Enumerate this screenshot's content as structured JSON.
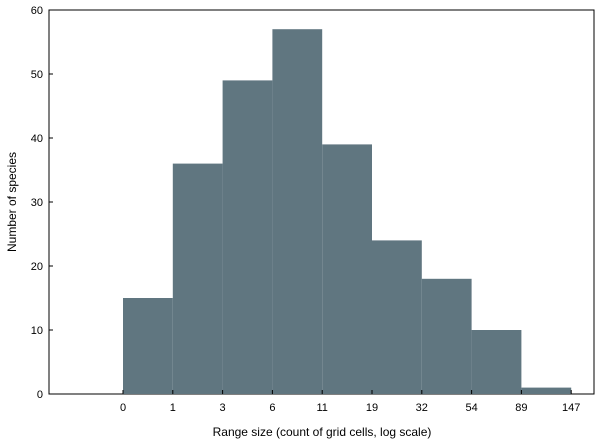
{
  "chart_data": {
    "type": "bar",
    "title": "",
    "xlabel": "Range size (count of grid cells, log scale)",
    "ylabel": "Number of species",
    "x_tick_labels": [
      "0",
      "1",
      "3",
      "6",
      "11",
      "19",
      "32",
      "54",
      "89",
      "147"
    ],
    "bins": [
      {
        "from": "0",
        "to": "1",
        "value": 15
      },
      {
        "from": "1",
        "to": "3",
        "value": 36
      },
      {
        "from": "3",
        "to": "6",
        "value": 49
      },
      {
        "from": "6",
        "to": "11",
        "value": 57
      },
      {
        "from": "11",
        "to": "19",
        "value": 39
      },
      {
        "from": "19",
        "to": "32",
        "value": 24
      },
      {
        "from": "32",
        "to": "54",
        "value": 18
      },
      {
        "from": "54",
        "to": "89",
        "value": 10
      },
      {
        "from": "89",
        "to": "147",
        "value": 1
      }
    ],
    "ylim": [
      0,
      60
    ],
    "y_ticks": [
      0,
      10,
      20,
      30,
      40,
      50,
      60
    ],
    "x_scale": "log",
    "grid": false,
    "bar_color": "#607680"
  }
}
